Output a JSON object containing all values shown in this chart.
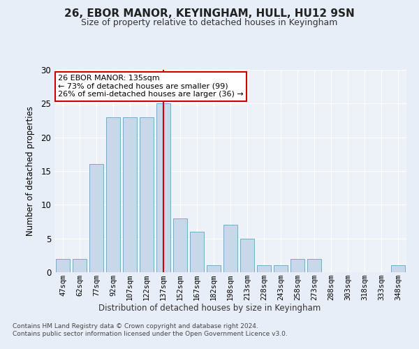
{
  "title1": "26, EBOR MANOR, KEYINGHAM, HULL, HU12 9SN",
  "title2": "Size of property relative to detached houses in Keyingham",
  "xlabel": "Distribution of detached houses by size in Keyingham",
  "ylabel": "Number of detached properties",
  "categories": [
    "47sqm",
    "62sqm",
    "77sqm",
    "92sqm",
    "107sqm",
    "122sqm",
    "137sqm",
    "152sqm",
    "167sqm",
    "182sqm",
    "198sqm",
    "213sqm",
    "228sqm",
    "243sqm",
    "258sqm",
    "273sqm",
    "288sqm",
    "303sqm",
    "318sqm",
    "333sqm",
    "348sqm"
  ],
  "values": [
    2,
    2,
    16,
    23,
    23,
    23,
    25,
    8,
    6,
    1,
    7,
    5,
    1,
    1,
    2,
    2,
    0,
    0,
    0,
    0,
    1
  ],
  "bar_color": "#c8d8e8",
  "bar_edge_color": "#7aaac8",
  "vline_x_index": 6,
  "vline_color": "#cc0000",
  "annotation_text": "26 EBOR MANOR: 135sqm\n← 73% of detached houses are smaller (99)\n26% of semi-detached houses are larger (36) →",
  "annotation_box_color": "#ffffff",
  "annotation_box_edge": "#cc0000",
  "ylim": [
    0,
    30
  ],
  "yticks": [
    0,
    5,
    10,
    15,
    20,
    25,
    30
  ],
  "footer1": "Contains HM Land Registry data © Crown copyright and database right 2024.",
  "footer2": "Contains public sector information licensed under the Open Government Licence v3.0.",
  "bg_color": "#e8eef8",
  "plot_bg_color": "#edf1f8"
}
